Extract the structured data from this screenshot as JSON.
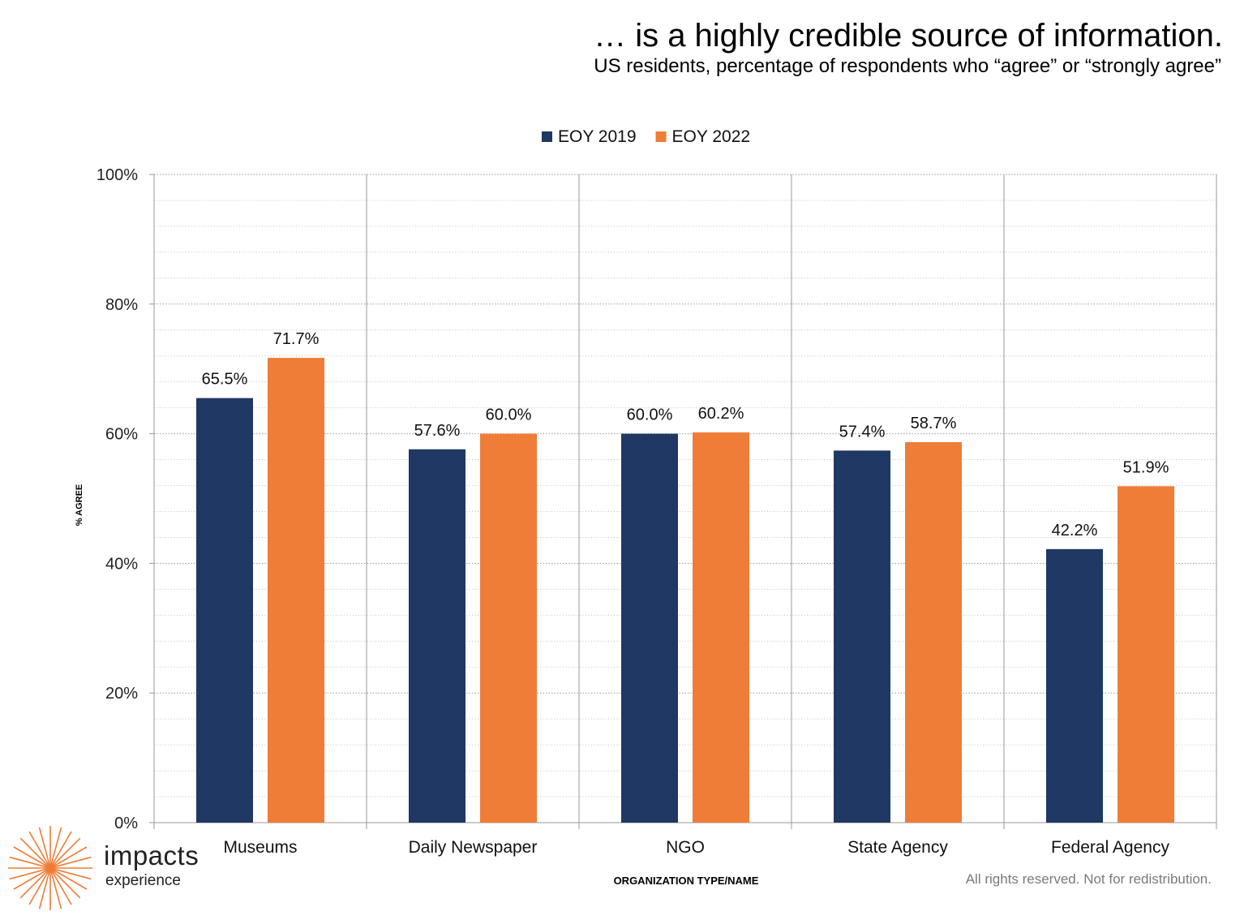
{
  "title": "… is a highly credible source of information.",
  "subtitle": "US  residents, percentage of respondents who “agree” or “strongly agree”",
  "footer_note": "All rights reserved. Not for redistribution.",
  "logo": {
    "word": "impacts",
    "sub": "experience",
    "mark_icon": "starburst-icon",
    "color": "#EF7D37"
  },
  "colors": {
    "EOY 2019": "#203864",
    "EOY 2022": "#EF7D37"
  },
  "chart_data": {
    "type": "bar",
    "categories": [
      "Museums",
      "Daily Newspaper",
      "NGO",
      "State Agency",
      "Federal Agency"
    ],
    "series": [
      {
        "name": "EOY 2019",
        "values": [
          65.5,
          57.6,
          60.0,
          57.4,
          42.2
        ],
        "labels": [
          "65.5%",
          "57.6%",
          "60.0%",
          "57.4%",
          "42.2%"
        ]
      },
      {
        "name": "EOY 2022",
        "values": [
          71.7,
          60.0,
          60.2,
          58.7,
          51.9
        ],
        "labels": [
          "71.7%",
          "60.0%",
          "60.2%",
          "58.7%",
          "51.9%"
        ]
      }
    ],
    "xlabel": "ORGANIZATION TYPE/NAME",
    "ylabel": "% AGREE",
    "ylim": [
      0,
      100
    ],
    "yticks": [
      0,
      20,
      40,
      60,
      80,
      100
    ],
    "ytick_labels": [
      "0%",
      "20%",
      "40%",
      "60%",
      "80%",
      "100%"
    ],
    "grid": true,
    "legend": "top-center"
  }
}
